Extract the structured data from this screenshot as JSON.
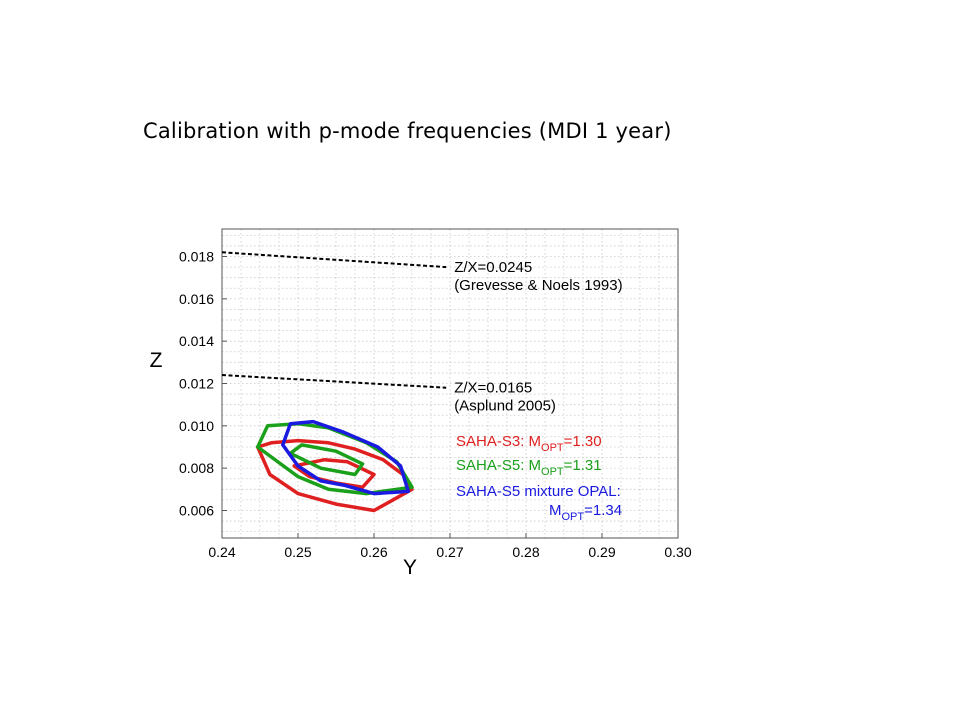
{
  "slide": {
    "title": "Calibration with p-mode frequencies (MDI 1 year)"
  },
  "chart_data": {
    "type": "line",
    "xlabel": "Y",
    "ylabel": "Z",
    "xlim": [
      0.24,
      0.3
    ],
    "ylim": [
      0.0047,
      0.0193
    ],
    "x_ticks": [
      "0.24",
      "0.25",
      "0.26",
      "0.27",
      "0.28",
      "0.29",
      "0.30"
    ],
    "y_ticks": [
      "0.006",
      "0.008",
      "0.010",
      "0.012",
      "0.014",
      "0.016",
      "0.018"
    ],
    "x_tick_values": [
      0.24,
      0.25,
      0.26,
      0.27,
      0.28,
      0.29,
      0.3
    ],
    "y_tick_values": [
      0.006,
      0.008,
      0.01,
      0.012,
      0.014,
      0.016,
      0.018
    ],
    "grid": true,
    "reference_lines": [
      {
        "line1": "Z/X=0.0245",
        "line2": "(Grevesse & Noels 1993)",
        "x": [
          0.24,
          0.2695
        ],
        "y": [
          0.0182,
          0.0175
        ]
      },
      {
        "line1": "Z/X=0.0165",
        "line2": "(Asplund 2005)",
        "x": [
          0.24,
          0.2695
        ],
        "y": [
          0.0124,
          0.0118
        ]
      }
    ],
    "series": [
      {
        "color": "#e02020",
        "legend": {
          "prefix": "SAHA-S3: M",
          "sub": "OPT",
          "suffix": "=1.30"
        },
        "contours": [
          {
            "x": [
              0.2447,
              0.2465,
              0.25,
              0.254,
              0.2575,
              0.2612,
              0.2638,
              0.265,
              0.26,
              0.255,
              0.25,
              0.2463,
              0.2447
            ],
            "y": [
              0.009,
              0.0092,
              0.0093,
              0.0092,
              0.0089,
              0.0084,
              0.0077,
              0.007,
              0.006,
              0.0063,
              0.0068,
              0.0077,
              0.009
            ]
          },
          {
            "x": [
              0.2495,
              0.2535,
              0.2565,
              0.26,
              0.2585,
              0.255,
              0.2515,
              0.2495
            ],
            "y": [
              0.0081,
              0.0084,
              0.0083,
              0.0077,
              0.0071,
              0.0073,
              0.0076,
              0.0081
            ]
          }
        ]
      },
      {
        "color": "#1aa01a",
        "legend": {
          "prefix": "SAHA-S5: M",
          "sub": "OPT",
          "suffix": "=1.31"
        },
        "contours": [
          {
            "x": [
              0.2447,
              0.246,
              0.25,
              0.254,
              0.259,
              0.263,
              0.265,
              0.259,
              0.254,
              0.25,
              0.2447
            ],
            "y": [
              0.009,
              0.01,
              0.0101,
              0.0099,
              0.0092,
              0.0083,
              0.0071,
              0.0068,
              0.007,
              0.0076,
              0.009
            ]
          },
          {
            "x": [
              0.249,
              0.2505,
              0.255,
              0.2585,
              0.2575,
              0.253,
              0.249
            ],
            "y": [
              0.0087,
              0.0091,
              0.0088,
              0.0082,
              0.0077,
              0.008,
              0.0087
            ]
          }
        ]
      },
      {
        "color": "#1a1ae0",
        "legend": {
          "prefix": "SAHA-S5 mixture OPAL:",
          "sub": "OPT",
          "suffix": "=1.34",
          "line2_prefix": "M"
        },
        "contours": [
          {
            "x": [
              0.248,
              0.249,
              0.252,
              0.256,
              0.2605,
              0.2635,
              0.2645,
              0.26,
              0.256,
              0.253,
              0.25,
              0.248
            ],
            "y": [
              0.0091,
              0.0101,
              0.0102,
              0.0097,
              0.009,
              0.0081,
              0.0069,
              0.0068,
              0.0072,
              0.0074,
              0.0081,
              0.0091
            ]
          }
        ]
      }
    ]
  }
}
